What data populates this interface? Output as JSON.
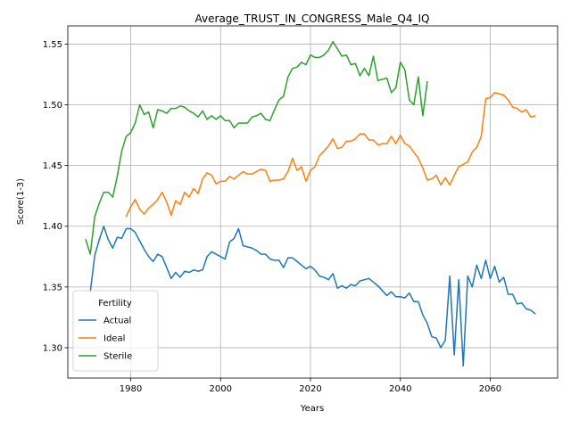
{
  "chart_data": {
    "type": "line",
    "title": "Average_TRUST_IN_CONGRESS_Male_Q4_IQ",
    "xlabel": "Years",
    "ylabel": "Score(1-3)",
    "xlim": [
      1966,
      2075
    ],
    "ylim": [
      1.275,
      1.565
    ],
    "xticks": [
      1980,
      2000,
      2020,
      2040,
      2060
    ],
    "yticks": [
      1.3,
      1.35,
      1.4,
      1.45,
      1.5,
      1.55
    ],
    "ytick_labels": [
      "1.30",
      "1.35",
      "1.40",
      "1.45",
      "1.50",
      "1.55"
    ],
    "grid": true,
    "legend": {
      "title": "Fertility",
      "placement": "lower-left"
    },
    "series": [
      {
        "name": "Actual",
        "color": "#1f77b4",
        "x": [
          1971,
          1972,
          1973,
          1974,
          1975,
          1976,
          1977,
          1978,
          1979,
          1980,
          1981,
          1982,
          1983,
          1984,
          1985,
          1986,
          1987,
          1988,
          1989,
          1990,
          1991,
          1992,
          1993,
          1994,
          1995,
          1996,
          1997,
          1998,
          1999,
          2000,
          2001,
          2002,
          2003,
          2004,
          2005,
          2006,
          2007,
          2008,
          2009,
          2010,
          2011,
          2012,
          2013,
          2014,
          2015,
          2016,
          2017,
          2018,
          2019,
          2020,
          2021,
          2022,
          2023,
          2024,
          2025,
          2026,
          2027,
          2028,
          2029,
          2030,
          2031,
          2032,
          2033,
          2034,
          2035,
          2036,
          2037,
          2038,
          2039,
          2040,
          2041,
          2042,
          2043,
          2044,
          2045,
          2046,
          2047,
          2048,
          2049,
          2050,
          2051,
          2052,
          2053,
          2054,
          2055,
          2056,
          2057,
          2058,
          2059,
          2060,
          2061,
          2062,
          2063,
          2064,
          2065,
          2066,
          2067,
          2068,
          2069,
          2070
        ],
        "y": [
          1.346,
          1.376,
          1.389,
          1.4,
          1.389,
          1.382,
          1.391,
          1.39,
          1.398,
          1.398,
          1.395,
          1.388,
          1.381,
          1.375,
          1.371,
          1.377,
          1.375,
          1.366,
          1.357,
          1.362,
          1.358,
          1.363,
          1.362,
          1.364,
          1.363,
          1.364,
          1.375,
          1.379,
          1.377,
          1.375,
          1.373,
          1.387,
          1.39,
          1.398,
          1.384,
          1.383,
          1.382,
          1.38,
          1.377,
          1.377,
          1.373,
          1.372,
          1.372,
          1.366,
          1.374,
          1.374,
          1.371,
          1.368,
          1.365,
          1.367,
          1.364,
          1.359,
          1.358,
          1.356,
          1.361,
          1.349,
          1.351,
          1.349,
          1.352,
          1.351,
          1.355,
          1.356,
          1.357,
          1.354,
          1.351,
          1.347,
          1.343,
          1.346,
          1.342,
          1.342,
          1.341,
          1.345,
          1.338,
          1.338,
          1.327,
          1.32,
          1.309,
          1.308,
          1.3,
          1.306,
          1.359,
          1.294,
          1.356,
          1.285,
          1.359,
          1.35,
          1.368,
          1.357,
          1.372,
          1.357,
          1.367,
          1.354,
          1.358,
          1.344,
          1.344,
          1.336,
          1.337,
          1.332,
          1.331,
          1.328
        ]
      },
      {
        "name": "Ideal",
        "color": "#ff7f0e",
        "x": [
          1979,
          1980,
          1981,
          1982,
          1983,
          1984,
          1985,
          1986,
          1987,
          1988,
          1989,
          1990,
          1991,
          1992,
          1993,
          1994,
          1995,
          1996,
          1997,
          1998,
          1999,
          2000,
          2001,
          2002,
          2003,
          2004,
          2005,
          2006,
          2007,
          2008,
          2009,
          2010,
          2011,
          2012,
          2013,
          2014,
          2015,
          2016,
          2017,
          2018,
          2019,
          2020,
          2021,
          2022,
          2023,
          2024,
          2025,
          2026,
          2027,
          2028,
          2029,
          2030,
          2031,
          2032,
          2033,
          2034,
          2035,
          2036,
          2037,
          2038,
          2039,
          2040,
          2041,
          2042,
          2043,
          2044,
          2045,
          2046,
          2047,
          2048,
          2049,
          2050,
          2051,
          2052,
          2053,
          2054,
          2055,
          2056,
          2057,
          2058,
          2059,
          2060,
          2061,
          2062,
          2063,
          2064,
          2065,
          2066,
          2067,
          2068,
          2069,
          2070
        ],
        "y": [
          1.408,
          1.416,
          1.422,
          1.414,
          1.41,
          1.415,
          1.418,
          1.422,
          1.428,
          1.42,
          1.409,
          1.421,
          1.418,
          1.428,
          1.424,
          1.431,
          1.427,
          1.439,
          1.444,
          1.442,
          1.435,
          1.437,
          1.437,
          1.441,
          1.439,
          1.442,
          1.445,
          1.443,
          1.443,
          1.445,
          1.447,
          1.446,
          1.437,
          1.438,
          1.438,
          1.439,
          1.445,
          1.456,
          1.446,
          1.449,
          1.437,
          1.446,
          1.449,
          1.458,
          1.462,
          1.466,
          1.472,
          1.464,
          1.465,
          1.47,
          1.47,
          1.472,
          1.476,
          1.476,
          1.471,
          1.471,
          1.467,
          1.468,
          1.468,
          1.474,
          1.468,
          1.475,
          1.468,
          1.466,
          1.461,
          1.456,
          1.448,
          1.438,
          1.439,
          1.442,
          1.434,
          1.44,
          1.434,
          1.442,
          1.449,
          1.451,
          1.453,
          1.461,
          1.465,
          1.474,
          1.505,
          1.506,
          1.51,
          1.509,
          1.508,
          1.504,
          1.498,
          1.497,
          1.494,
          1.496,
          1.49,
          1.491
        ]
      },
      {
        "name": "Sterile",
        "color": "#2ca02c",
        "x": [
          1970,
          1971,
          1972,
          1973,
          1974,
          1975,
          1976,
          1977,
          1978,
          1979,
          1980,
          1981,
          1982,
          1983,
          1984,
          1985,
          1986,
          1987,
          1988,
          1989,
          1990,
          1991,
          1992,
          1993,
          1994,
          1995,
          1996,
          1997,
          1998,
          1999,
          2000,
          2001,
          2002,
          2003,
          2004,
          2005,
          2006,
          2007,
          2008,
          2009,
          2010,
          2011,
          2012,
          2013,
          2014,
          2015,
          2016,
          2017,
          2018,
          2019,
          2020,
          2021,
          2022,
          2023,
          2024,
          2025,
          2026,
          2027,
          2028,
          2029,
          2030,
          2031,
          2032,
          2033,
          2034,
          2035,
          2036,
          2037,
          2038,
          2039,
          2040,
          2041,
          2042,
          2043,
          2044,
          2045,
          2046
        ],
        "y": [
          1.389,
          1.377,
          1.408,
          1.419,
          1.428,
          1.428,
          1.424,
          1.441,
          1.462,
          1.474,
          1.477,
          1.485,
          1.5,
          1.492,
          1.494,
          1.481,
          1.496,
          1.495,
          1.493,
          1.497,
          1.497,
          1.499,
          1.498,
          1.495,
          1.493,
          1.49,
          1.495,
          1.488,
          1.491,
          1.488,
          1.491,
          1.487,
          1.487,
          1.481,
          1.485,
          1.485,
          1.485,
          1.49,
          1.491,
          1.493,
          1.488,
          1.487,
          1.496,
          1.504,
          1.507,
          1.523,
          1.53,
          1.531,
          1.535,
          1.533,
          1.541,
          1.539,
          1.539,
          1.541,
          1.545,
          1.552,
          1.546,
          1.54,
          1.541,
          1.533,
          1.534,
          1.524,
          1.53,
          1.524,
          1.54,
          1.52,
          1.521,
          1.522,
          1.51,
          1.514,
          1.535,
          1.529,
          1.504,
          1.5,
          1.523,
          1.491,
          1.519
        ]
      }
    ]
  }
}
